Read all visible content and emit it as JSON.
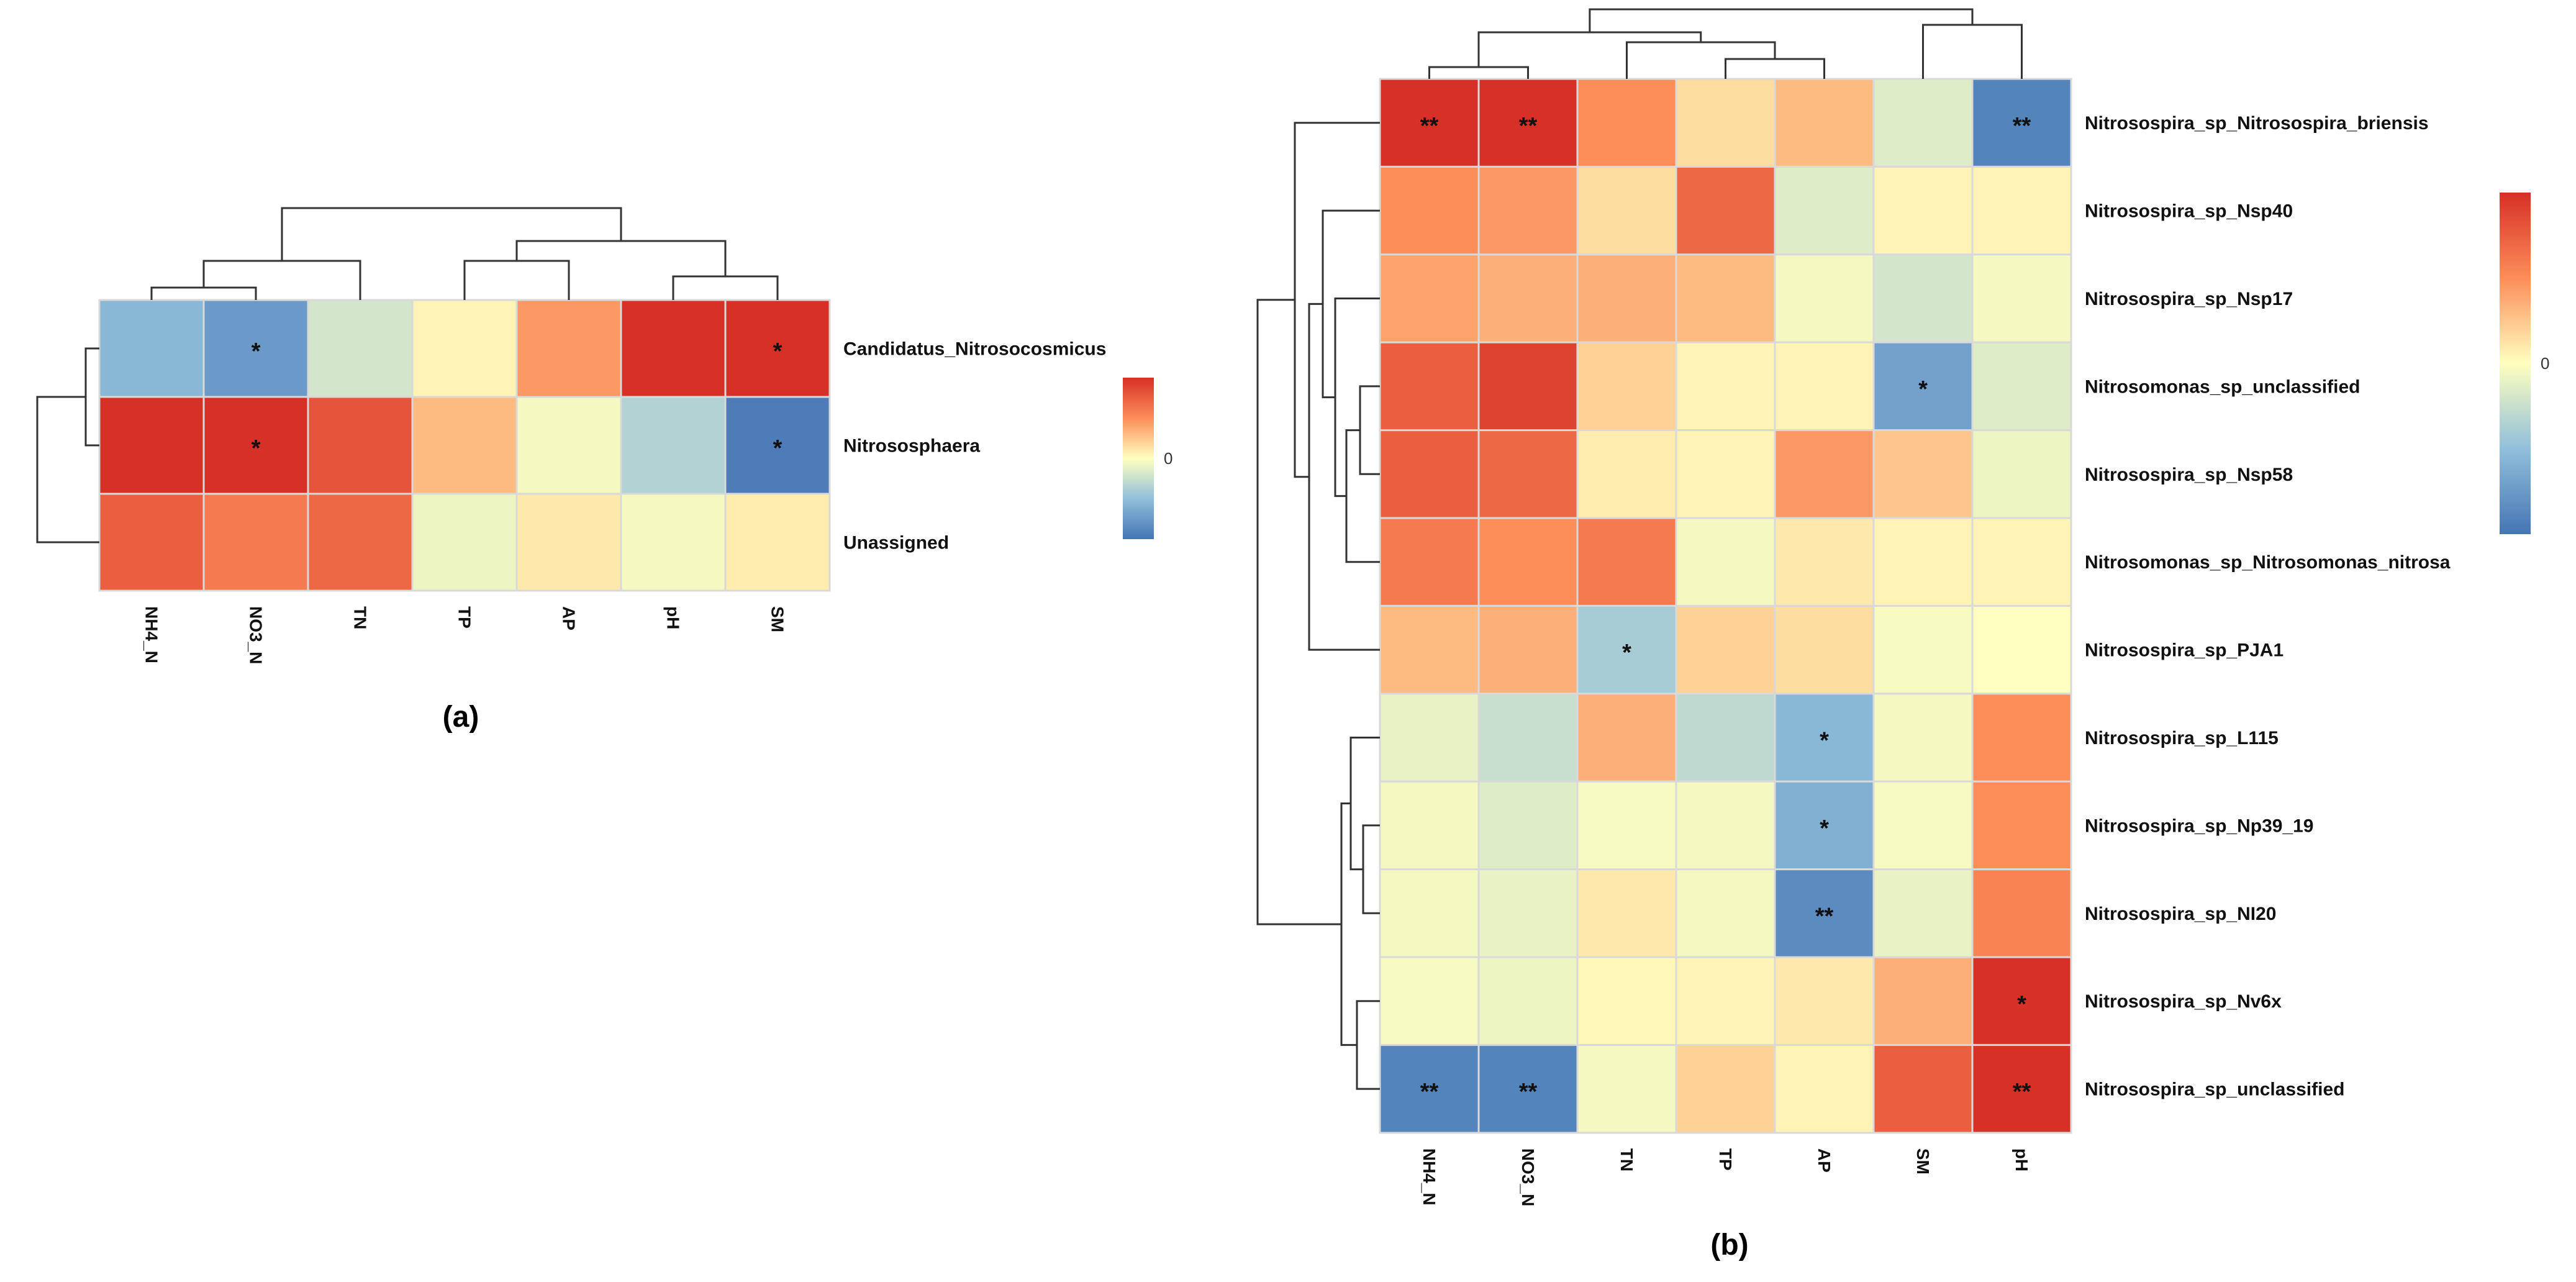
{
  "chart_data": [
    {
      "type": "heatmap",
      "panel_label": "(a)",
      "rows": [
        "Candidatus_Nitrosocosmicus",
        "Nitrososphaera",
        "Unassigned"
      ],
      "columns": [
        "NH4_N",
        "NO3_N",
        "TN",
        "TP",
        "AP",
        "pH",
        "SM"
      ],
      "values": [
        [
          -0.55,
          -0.75,
          -0.2,
          0.05,
          0.45,
          1.0,
          1.0
        ],
        [
          1.0,
          1.0,
          0.8,
          0.3,
          -0.05,
          -0.35,
          -0.95
        ],
        [
          0.75,
          0.6,
          0.7,
          -0.08,
          0.1,
          -0.05,
          0.08
        ]
      ],
      "significance": [
        [
          "",
          "*",
          "",
          "",
          "",
          "",
          "*"
        ],
        [
          "",
          "*",
          "",
          "",
          "",
          "",
          "*"
        ],
        [
          "",
          "",
          "",
          "",
          "",
          "",
          ""
        ]
      ],
      "colorbar": {
        "tick_label": "0",
        "range": [
          -1,
          1
        ]
      }
    },
    {
      "type": "heatmap",
      "panel_label": "(b)",
      "rows": [
        "Nitrosospira_sp_Nitrosospira_briensis",
        "Nitrosospira_sp_Nsp40",
        "Nitrosospira_sp_Nsp17",
        "Nitrosomonas_sp_unclassified",
        "Nitrosospira_sp_Nsp58",
        "Nitrosomonas_sp_Nitrosomonas_nitrosa",
        "Nitrosospira_sp_PJA1",
        "Nitrosospira_sp_L115",
        "Nitrosospira_sp_Np39_19",
        "Nitrosospira_sp_NI20",
        "Nitrosospira_sp_Nv6x",
        "Nitrosospira_sp_unclassified"
      ],
      "columns": [
        "NH4_N",
        "NO3_N",
        "TN",
        "TP",
        "AP",
        "SM",
        "pH"
      ],
      "values": [
        [
          1.0,
          1.0,
          0.5,
          0.15,
          0.3,
          -0.15,
          -0.9
        ],
        [
          0.5,
          0.45,
          0.15,
          0.7,
          -0.15,
          0.05,
          0.05
        ],
        [
          0.4,
          0.35,
          0.35,
          0.3,
          -0.05,
          -0.2,
          -0.05
        ],
        [
          0.75,
          0.9,
          0.2,
          0.05,
          0.05,
          -0.7,
          -0.15
        ],
        [
          0.75,
          0.7,
          0.08,
          0.05,
          0.45,
          0.25,
          -0.08
        ],
        [
          0.6,
          0.5,
          0.6,
          -0.05,
          0.1,
          0.05,
          0.05
        ],
        [
          0.3,
          0.35,
          -0.4,
          0.2,
          0.15,
          -0.03,
          0.0
        ],
        [
          -0.1,
          -0.25,
          0.35,
          -0.3,
          -0.55,
          -0.05,
          0.5
        ],
        [
          -0.05,
          -0.15,
          -0.03,
          -0.05,
          -0.6,
          -0.03,
          0.5
        ],
        [
          -0.05,
          -0.1,
          0.1,
          -0.05,
          -0.85,
          -0.1,
          0.55
        ],
        [
          -0.03,
          -0.08,
          0.03,
          0.05,
          0.1,
          0.35,
          1.0
        ],
        [
          -0.9,
          -0.9,
          -0.05,
          0.2,
          0.05,
          0.75,
          1.0
        ]
      ],
      "significance": [
        [
          "**",
          "**",
          "",
          "",
          "",
          "",
          "**"
        ],
        [
          "",
          "",
          "",
          "",
          "",
          "",
          ""
        ],
        [
          "",
          "",
          "",
          "",
          "",
          "",
          ""
        ],
        [
          "",
          "",
          "",
          "",
          "",
          "*",
          ""
        ],
        [
          "",
          "",
          "",
          "",
          "",
          "",
          ""
        ],
        [
          "",
          "",
          "",
          "",
          "",
          "",
          ""
        ],
        [
          "",
          "",
          "*",
          "",
          "",
          "",
          ""
        ],
        [
          "",
          "",
          "",
          "",
          "*",
          "",
          ""
        ],
        [
          "",
          "",
          "",
          "",
          "*",
          "",
          ""
        ],
        [
          "",
          "",
          "",
          "",
          "**",
          "",
          ""
        ],
        [
          "",
          "",
          "",
          "",
          "",
          "",
          "*"
        ],
        [
          "**",
          "**",
          "",
          "",
          "",
          "",
          "**"
        ]
      ],
      "colorbar": {
        "tick_label": "0",
        "range": [
          -1,
          1
        ]
      }
    }
  ],
  "colors": {
    "low": "#4575b4",
    "mid": "#ffffbf",
    "high": "#d73027",
    "grid": "#d9d9d9",
    "text": "#111111"
  }
}
